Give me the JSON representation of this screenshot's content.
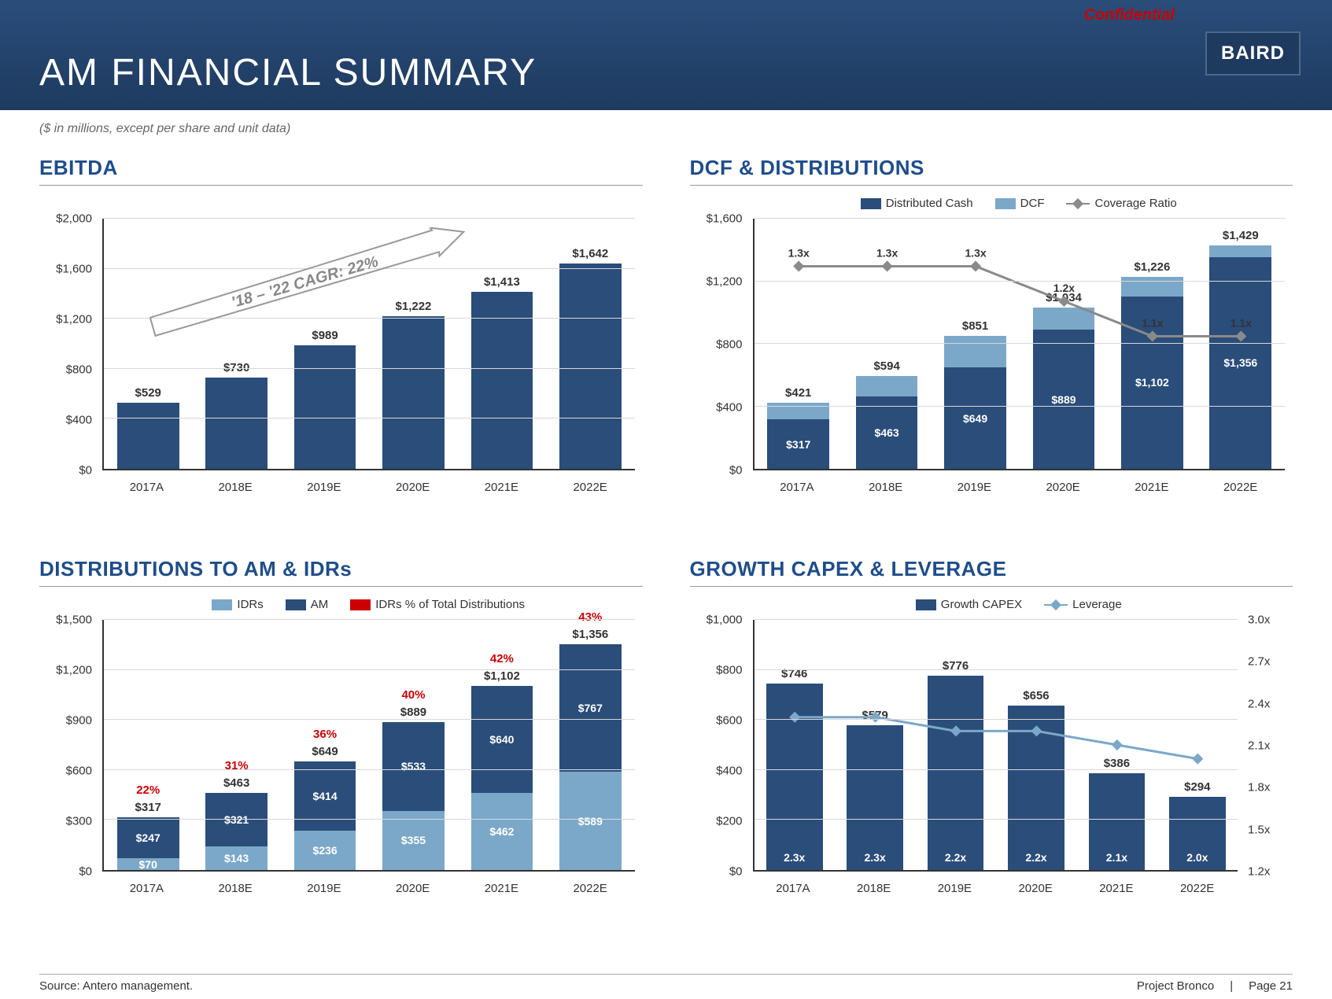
{
  "header": {
    "title": "AM FINANCIAL SUMMARY",
    "confidential": "Confidential",
    "logo": "BAIRD",
    "subtitle": "($ in millions, except per share and unit data)"
  },
  "colors": {
    "brand": "#1e4d8b",
    "bar_dark": "#2a4d7a",
    "bar_light": "#7ba8c9",
    "accent_red": "#cc0000",
    "line_gray": "#8a8a8a",
    "line_blue": "#7ba8c9",
    "grid": "#d8d8d8",
    "bg": "#ffffff"
  },
  "categories": [
    "2017A",
    "2018E",
    "2019E",
    "2020E",
    "2021E",
    "2022E"
  ],
  "ebitda": {
    "title": "EBITDA",
    "values": [
      529,
      730,
      989,
      1222,
      1413,
      1642
    ],
    "labels": [
      "$529",
      "$730",
      "$989",
      "$1,222",
      "$1,413",
      "$1,642"
    ],
    "ylim": [
      0,
      2000
    ],
    "ytick_step": 400,
    "bar_color": "#2a4d7a",
    "cagr_text": "'18 – '22 CAGR: 22%"
  },
  "dcf": {
    "title": "DCF & DISTRIBUTIONS",
    "legend": [
      "Distributed Cash",
      "DCF",
      "Coverage Ratio"
    ],
    "dist_cash": [
      317,
      463,
      649,
      889,
      1102,
      1356
    ],
    "dcf_top": [
      421,
      594,
      851,
      1034,
      1226,
      1429
    ],
    "dist_labels": [
      "$317",
      "$463",
      "$649",
      "$889",
      "$1,102",
      "$1,356"
    ],
    "dcf_labels": [
      "$421",
      "$594",
      "$851",
      "$1,034",
      "$1,226",
      "$1,429"
    ],
    "coverage": [
      1.3,
      1.3,
      1.3,
      1.2,
      1.1,
      1.1
    ],
    "coverage_labels": [
      "1.3x",
      "1.3x",
      "1.3x",
      "1.2x",
      "1.1x",
      "1.1x"
    ],
    "ylim": [
      0,
      1600
    ],
    "ytick_step": 400,
    "colors": {
      "dist": "#2a4d7a",
      "dcf": "#7ba8c9",
      "line": "#8a8a8a"
    }
  },
  "am_idr": {
    "title": "DISTRIBUTIONS TO AM & IDRs",
    "legend": [
      "IDRs",
      "AM",
      "IDRs % of Total Distributions"
    ],
    "idrs": [
      70,
      143,
      236,
      355,
      462,
      589
    ],
    "am": [
      247,
      321,
      414,
      533,
      640,
      767
    ],
    "idrs_labels": [
      "$70",
      "$143",
      "$236",
      "$355",
      "$462",
      "$589"
    ],
    "am_labels": [
      "$247",
      "$321",
      "$414",
      "$533",
      "$640",
      "$767"
    ],
    "totals": [
      "$317",
      "$463",
      "$649",
      "$889",
      "$1,102",
      "$1,356"
    ],
    "pct": [
      "22%",
      "31%",
      "36%",
      "40%",
      "42%",
      "43%"
    ],
    "ylim": [
      0,
      1500
    ],
    "ytick_step": 300,
    "colors": {
      "idrs": "#7ba8c9",
      "am": "#2a4d7a",
      "pct": "#cc0000"
    }
  },
  "capex": {
    "title": "GROWTH CAPEX & LEVERAGE",
    "legend": [
      "Growth CAPEX",
      "Leverage"
    ],
    "capex": [
      746,
      579,
      776,
      656,
      386,
      294
    ],
    "capex_labels": [
      "$746",
      "$579",
      "$776",
      "$656",
      "$386",
      "$294"
    ],
    "leverage": [
      2.3,
      2.3,
      2.2,
      2.2,
      2.1,
      2.0
    ],
    "leverage_labels": [
      "2.3x",
      "2.3x",
      "2.2x",
      "2.2x",
      "2.1x",
      "2.0x"
    ],
    "ylim": [
      0,
      1000
    ],
    "ytick_step": 200,
    "y2lim": [
      1.2,
      3.0
    ],
    "y2tick_step": 0.3,
    "colors": {
      "bar": "#2a4d7a",
      "line": "#7ba8c9"
    }
  },
  "footer": {
    "source": "Source: Antero management.",
    "project": "Project Bronco",
    "page": "Page 21"
  }
}
